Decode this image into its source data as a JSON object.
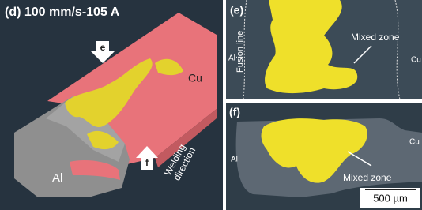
{
  "panels": {
    "d": {
      "label": "(d) 100 mm/s-105 A",
      "arrow_e": "e",
      "arrow_f": "f",
      "cu": "Cu",
      "al": "Al",
      "welding_direction": [
        "Welding",
        "direction"
      ]
    },
    "e": {
      "label": "(e)",
      "mixed_zone": "Mixed zone",
      "al": "Al",
      "fusion_line": "Fusion line",
      "cu": "Cu"
    },
    "f": {
      "label": "(f)",
      "cu": "Cu",
      "al": "Al",
      "mixed_zone": "Mixed zone",
      "scale_bar": "500 µm"
    }
  }
}
